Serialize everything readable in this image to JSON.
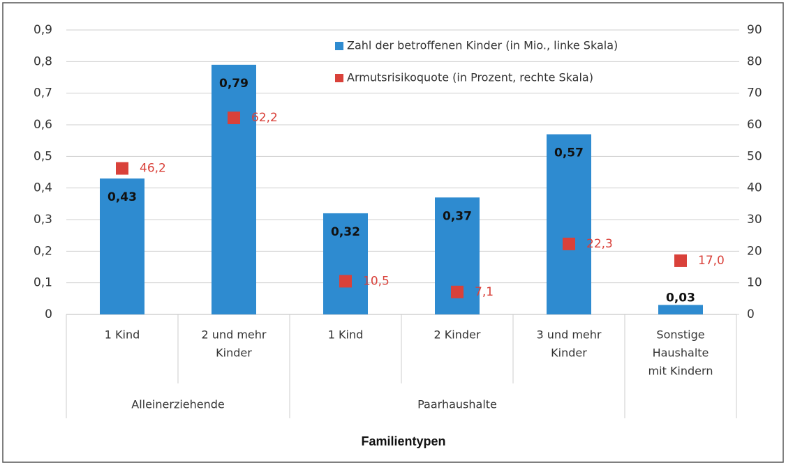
{
  "chart_data": {
    "type": "bar",
    "x_label": "Familientypen",
    "categories": [
      [
        "1 Kind"
      ],
      [
        "2 und mehr",
        "Kinder"
      ],
      [
        "1 Kind"
      ],
      [
        "2 Kinder"
      ],
      [
        "3 und mehr",
        "Kinder"
      ],
      [
        "Sonstige",
        "Haushalte",
        "mit Kindern"
      ]
    ],
    "groups": [
      {
        "label": "Alleinerziehende",
        "size": 2
      },
      {
        "label": "Paarhaushalte",
        "size": 3
      },
      {
        "label": null,
        "size": 1
      }
    ],
    "series": [
      {
        "name": "Zahl der betroffenen Kinder (in Mio., linke Skala)",
        "type": "bar",
        "color": "#2e8bd0",
        "values": [
          0.43,
          0.79,
          0.32,
          0.37,
          0.57,
          0.03
        ],
        "value_labels": [
          "0,43",
          "0,79",
          "0,32",
          "0,37",
          "0,57",
          "0,03"
        ]
      },
      {
        "name": "Armutsrisikoquote (in Prozent, rechte Skala)",
        "type": "scatter",
        "axis": "y2",
        "color": "#d9413a",
        "values": [
          46.2,
          62.2,
          10.5,
          7.1,
          22.3,
          17.0
        ],
        "value_labels": [
          "46,2",
          "62,2",
          "10,5",
          "7,1",
          "22,3",
          "17,0"
        ]
      }
    ],
    "ylim": [
      0,
      0.9
    ],
    "yticks": [
      0,
      {
        "value": 0.1,
        "label": "0,1"
      },
      {
        "value": 0.2,
        "label": "0,2"
      },
      {
        "value": 0.3,
        "label": "0,3"
      },
      {
        "value": 0.4,
        "label": "0,4"
      },
      {
        "value": 0.5,
        "label": "0,5"
      },
      {
        "value": 0.6,
        "label": "0,6"
      },
      {
        "value": 0.7,
        "label": "0,7"
      },
      {
        "value": 0.8,
        "label": "0,8"
      },
      {
        "value": 0.9,
        "label": "0,9"
      }
    ],
    "y2lim": [
      0,
      90
    ],
    "y2ticks": [
      0,
      10,
      20,
      30,
      40,
      50,
      60,
      70,
      80,
      90
    ],
    "grid": true
  }
}
